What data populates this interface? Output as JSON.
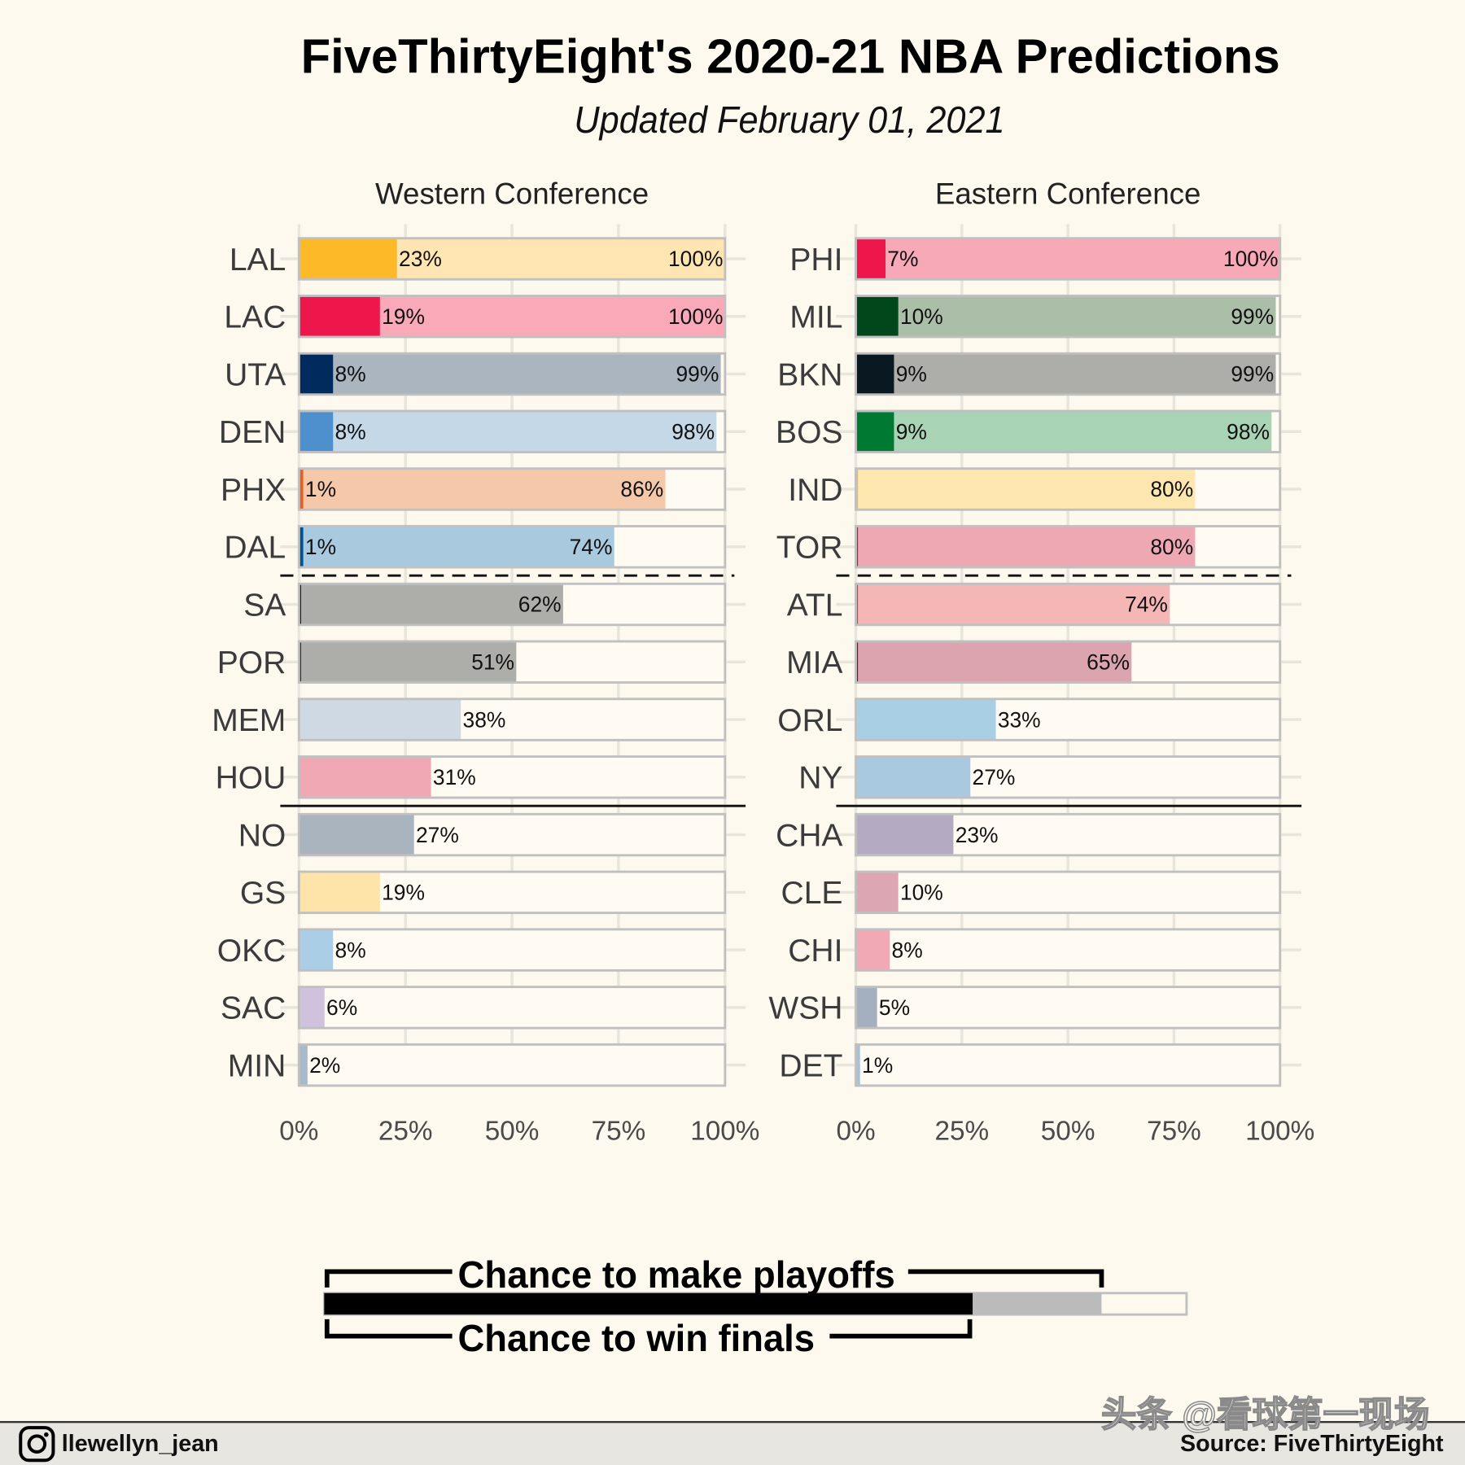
{
  "title": "FiveThirtyEight's 2020-21 NBA Predictions",
  "subtitle": "Updated February 01, 2021",
  "legend": {
    "playoffs_label": "Chance to make playoffs",
    "finals_label": "Chance to win finals",
    "colors": {
      "finals": "#000000",
      "playoffs": "#BBBBBB",
      "remaining": "#FFFFFF"
    }
  },
  "footer": {
    "handle_icon": "instagram-icon",
    "handle": "llewellyn_jean",
    "source": "Source: FiveThirtyEight"
  },
  "watermark": "头条 @看球第一现场",
  "chart_data": {
    "type": "bar",
    "unit": "%",
    "xlim": [
      0,
      100
    ],
    "ticks": [
      0,
      25,
      50,
      75,
      100
    ],
    "grid": true,
    "panels": [
      {
        "title": "Western Conference",
        "teams": [
          {
            "team": "LAL",
            "finals": 23,
            "playoffs": 100,
            "color_dark": "#FDB927",
            "color_light": "#FEE5B1"
          },
          {
            "team": "LAC",
            "finals": 19,
            "playoffs": 100,
            "color_dark": "#ED174C",
            "color_light": "#F9A9B7"
          },
          {
            "team": "UTA",
            "finals": 8,
            "playoffs": 99,
            "color_dark": "#002B5C",
            "color_light": "#AAB5BF"
          },
          {
            "team": "DEN",
            "finals": 8,
            "playoffs": 98,
            "color_dark": "#4D90CD",
            "color_light": "#C4D8E7"
          },
          {
            "team": "PHX",
            "finals": 1,
            "playoffs": 86,
            "color_dark": "#E56020",
            "color_light": "#F5C8AA"
          },
          {
            "team": "DAL",
            "finals": 1,
            "playoffs": 74,
            "color_dark": "#00538C",
            "color_light": "#A9C9DF"
          },
          {
            "team": "SA",
            "finals": 0.5,
            "playoffs": 62,
            "color_dark": "#1A1A1A",
            "color_light": "#ADAEAA"
          },
          {
            "team": "POR",
            "finals": 0.5,
            "playoffs": 51,
            "color_dark": "#2B2B2B",
            "color_light": "#ADAEAA"
          },
          {
            "team": "MEM",
            "finals": 0,
            "playoffs": 38,
            "color_light": "#CED9E3"
          },
          {
            "team": "HOU",
            "finals": 0,
            "playoffs": 31,
            "color_light": "#F0A9B4"
          },
          {
            "team": "NO",
            "finals": 0,
            "playoffs": 27,
            "color_light": "#A9B4BF"
          },
          {
            "team": "GS",
            "finals": 0,
            "playoffs": 19,
            "color_light": "#FEE4A9"
          },
          {
            "team": "OKC",
            "finals": 0,
            "playoffs": 8,
            "color_light": "#AACEE5"
          },
          {
            "team": "SAC",
            "finals": 0,
            "playoffs": 6,
            "color_light": "#D0C2DC"
          },
          {
            "team": "MIN",
            "finals": 0,
            "playoffs": 2,
            "color_light": "#A7BACB"
          }
        ]
      },
      {
        "title": "Eastern Conference",
        "teams": [
          {
            "team": "PHI",
            "finals": 7,
            "playoffs": 100,
            "color_dark": "#ED174C",
            "color_light": "#F8A9B7"
          },
          {
            "team": "MIL",
            "finals": 10,
            "playoffs": 99,
            "color_dark": "#00471B",
            "color_light": "#AABEA8"
          },
          {
            "team": "BKN",
            "finals": 9,
            "playoffs": 99,
            "color_dark": "#0A1822",
            "color_light": "#ADADAA"
          },
          {
            "team": "BOS",
            "finals": 9,
            "playoffs": 98,
            "color_dark": "#007A33",
            "color_light": "#A9D3B5"
          },
          {
            "team": "IND",
            "finals": 0.5,
            "playoffs": 80,
            "color_dark": "#FDBB30",
            "color_light": "#FEE6AF"
          },
          {
            "team": "TOR",
            "finals": 0.5,
            "playoffs": 80,
            "color_dark": "#CE1141",
            "color_light": "#EEA8B4"
          },
          {
            "team": "ATL",
            "finals": 0.5,
            "playoffs": 74,
            "color_dark": "#E03A3E",
            "color_light": "#F5B7B6"
          },
          {
            "team": "MIA",
            "finals": 0.5,
            "playoffs": 65,
            "color_dark": "#98002E",
            "color_light": "#DCA4AF"
          },
          {
            "team": "ORL",
            "finals": 0,
            "playoffs": 33,
            "color_light": "#A9CFE4"
          },
          {
            "team": "NY",
            "finals": 0,
            "playoffs": 27,
            "color_light": "#A9C9E0"
          },
          {
            "team": "CHA",
            "finals": 0,
            "playoffs": 23,
            "color_light": "#B4ABC3"
          },
          {
            "team": "CLE",
            "finals": 0,
            "playoffs": 10,
            "color_light": "#DDA6B3"
          },
          {
            "team": "CHI",
            "finals": 0,
            "playoffs": 8,
            "color_light": "#F0A9B5"
          },
          {
            "team": "WSH",
            "finals": 0,
            "playoffs": 5,
            "color_light": "#A4B0BF"
          },
          {
            "team": "DET",
            "finals": 0,
            "playoffs": 1,
            "color_light": "#A9C0D9"
          }
        ]
      }
    ]
  }
}
